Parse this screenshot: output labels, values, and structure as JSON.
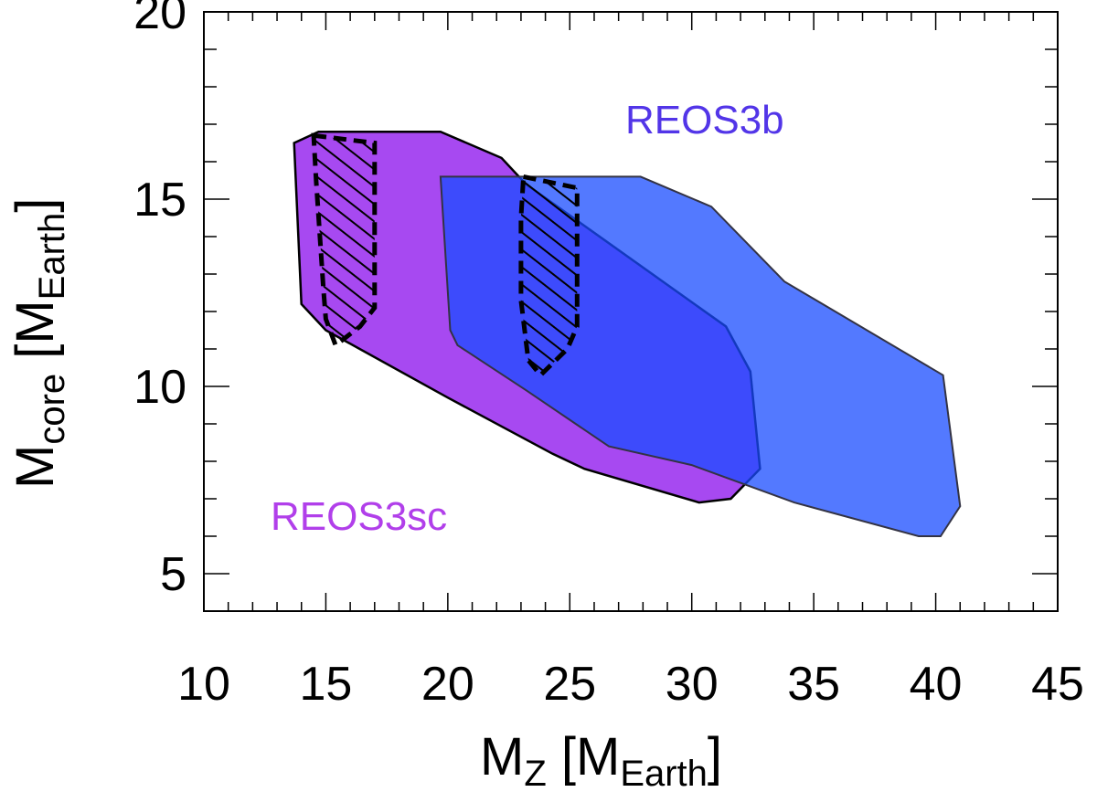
{
  "chart_data": {
    "type": "area",
    "x": {
      "label_main": "M",
      "label_sub": "Z",
      "label_unit_open": " [M",
      "label_unit_sub": "Earth",
      "label_unit_close": "]",
      "range": [
        10,
        45
      ],
      "ticks": [
        "10",
        "15",
        "20",
        "25",
        "30",
        "35",
        "40",
        "45"
      ]
    },
    "y": {
      "label_main": "M",
      "label_sub": "core",
      "label_unit_open": " [M",
      "label_unit_sub": "Earth",
      "label_unit_close": "]",
      "range": [
        4,
        20
      ],
      "ticks": [
        "5",
        "10",
        "15",
        "20"
      ]
    },
    "regions": [
      {
        "name": "REOS3sc",
        "label": "REOS3sc",
        "color": "#a23ff0",
        "label_color": "#b13fea",
        "points": [
          [
            13.7,
            16.5
          ],
          [
            14.7,
            16.8
          ],
          [
            19.7,
            16.8
          ],
          [
            22.2,
            16.1
          ],
          [
            23.2,
            15.4
          ],
          [
            31.4,
            11.6
          ],
          [
            32.4,
            10.4
          ],
          [
            32.8,
            7.8
          ],
          [
            31.6,
            7.0
          ],
          [
            30.3,
            6.9
          ],
          [
            25.6,
            7.8
          ],
          [
            24.3,
            8.2
          ],
          [
            20.0,
            9.7
          ],
          [
            15.0,
            11.5
          ],
          [
            14.0,
            12.2
          ]
        ],
        "hatched_points": [
          [
            14.5,
            16.7
          ],
          [
            17.0,
            16.5
          ],
          [
            17.0,
            15.5
          ],
          [
            17.0,
            12.1
          ],
          [
            16.4,
            11.6
          ],
          [
            15.4,
            11.1
          ],
          [
            15.0,
            11.8
          ],
          [
            14.9,
            12.6
          ],
          [
            14.6,
            15.5
          ]
        ]
      },
      {
        "name": "REOS3b",
        "label": "REOS3b",
        "color": "#1a4cff",
        "label_color": "#5235e8",
        "points": [
          [
            19.7,
            15.6
          ],
          [
            27.9,
            15.6
          ],
          [
            30.8,
            14.8
          ],
          [
            33.8,
            12.8
          ],
          [
            40.3,
            10.3
          ],
          [
            41.0,
            6.8
          ],
          [
            40.2,
            6.0
          ],
          [
            39.3,
            6.0
          ],
          [
            34.2,
            6.9
          ],
          [
            30.0,
            7.9
          ],
          [
            26.6,
            8.4
          ],
          [
            23.2,
            9.9
          ],
          [
            20.4,
            11.1
          ],
          [
            20.1,
            11.5
          ]
        ],
        "hatched_points": [
          [
            23.1,
            15.6
          ],
          [
            25.3,
            15.3
          ],
          [
            25.3,
            14.5
          ],
          [
            25.3,
            11.6
          ],
          [
            24.9,
            11.0
          ],
          [
            23.8,
            10.3
          ],
          [
            23.3,
            10.7
          ],
          [
            23.0,
            12.3
          ],
          [
            23.0,
            14.5
          ]
        ]
      }
    ],
    "grid": false,
    "minor_ticks": true
  }
}
